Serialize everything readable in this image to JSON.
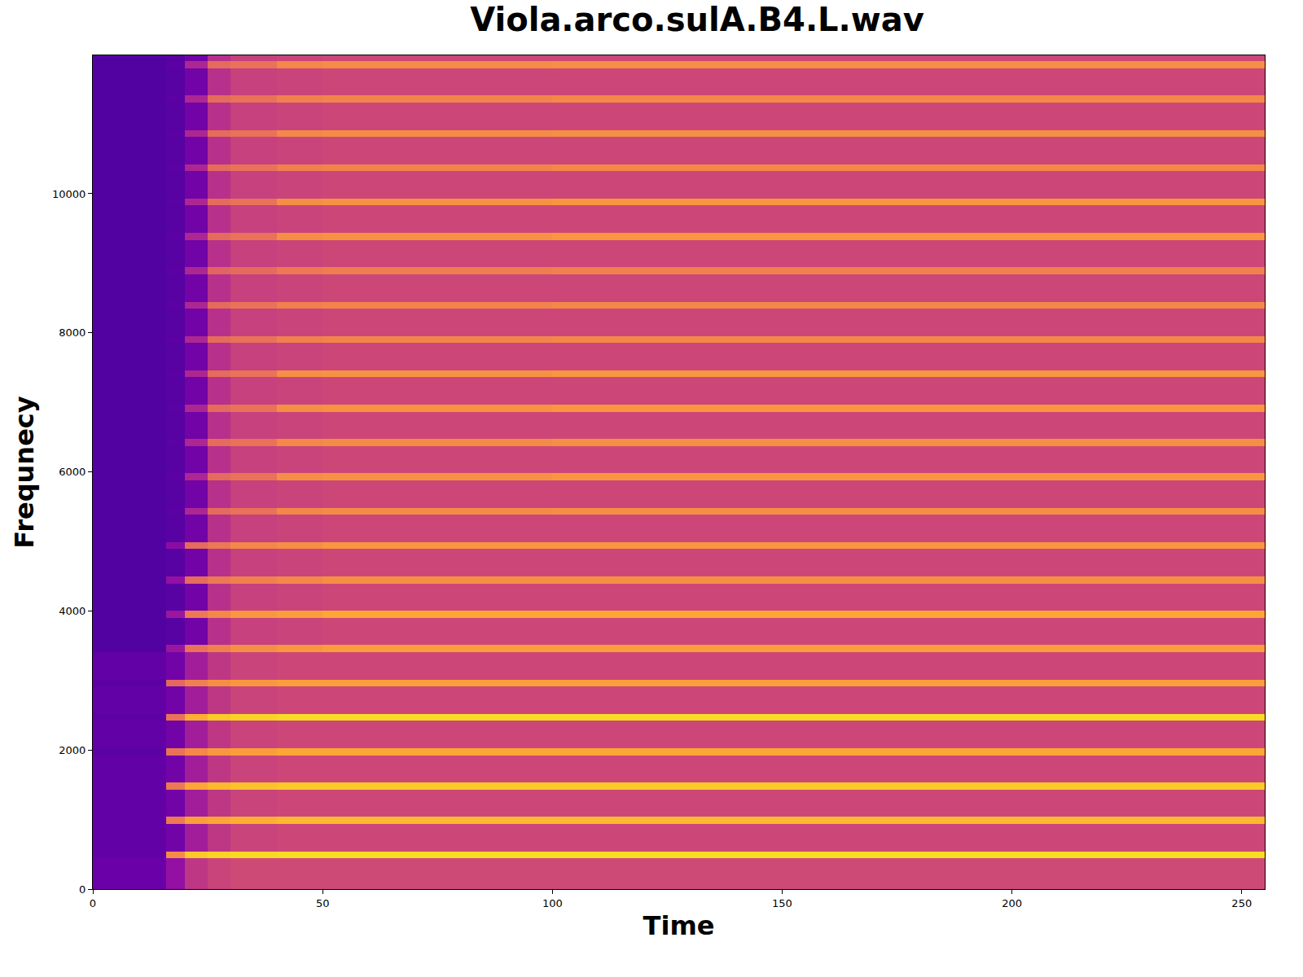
{
  "chart_data": {
    "type": "heatmap",
    "title": "Viola.arco.sulA.B4.L.wav",
    "x_label": "Time",
    "y_label": "Frequnecy",
    "x": [
      0,
      16,
      20,
      25,
      30,
      40,
      50,
      100,
      150,
      200,
      255
    ],
    "y": [
      0,
      444,
      544,
      938,
      1038,
      1432,
      1532,
      1926,
      2026,
      2420,
      2520,
      2914,
      3014,
      3408,
      3508,
      3902,
      4002,
      4396,
      4496,
      4890,
      4990,
      5384,
      5484,
      5878,
      5978,
      6372,
      6472,
      6866,
      6966,
      7360,
      7460,
      7854,
      7954,
      8348,
      8448,
      8842,
      8942,
      9336,
      9436,
      9830,
      9930,
      10324,
      10424,
      10818,
      10918,
      11312,
      11412,
      11806,
      11906,
      11990
    ],
    "z": [
      [
        -72,
        -62,
        -50,
        -46,
        -44,
        -44,
        -44,
        -44,
        -44,
        -44
      ],
      [
        -74,
        -25,
        -10,
        -8,
        -7,
        -6,
        -6,
        -6,
        -6,
        -6
      ],
      [
        -74,
        -70,
        -58,
        -50,
        -46,
        -45,
        -45,
        -45,
        -45,
        -45
      ],
      [
        -74,
        -30,
        -20,
        -18,
        -16,
        -14,
        -14,
        -14,
        -14,
        -14
      ],
      [
        -74,
        -70,
        -58,
        -50,
        -46,
        -45,
        -45,
        -45,
        -45,
        -45
      ],
      [
        -74,
        -30,
        -18,
        -14,
        -12,
        -10,
        -10,
        -10,
        -10,
        -10
      ],
      [
        -74,
        -70,
        -58,
        -50,
        -46,
        -45,
        -45,
        -45,
        -45,
        -45
      ],
      [
        -75,
        -32,
        -26,
        -22,
        -20,
        -18,
        -18,
        -18,
        -18,
        -18
      ],
      [
        -74,
        -70,
        -58,
        -50,
        -46,
        -45,
        -45,
        -45,
        -45,
        -45
      ],
      [
        -75,
        -32,
        -16,
        -10,
        -8,
        -6,
        -6,
        -6,
        -6,
        -6
      ],
      [
        -74,
        -70,
        -58,
        -50,
        -46,
        -45,
        -45,
        -45,
        -45,
        -45
      ],
      [
        -75,
        -35,
        -28,
        -24,
        -22,
        -20,
        -20,
        -20,
        -20,
        -20
      ],
      [
        -74,
        -70,
        -58,
        -50,
        -46,
        -45,
        -45,
        -45,
        -45,
        -45
      ],
      [
        -77,
        -60,
        -32,
        -28,
        -24,
        -22,
        -20,
        -20,
        -20,
        -20
      ],
      [
        -77,
        -76,
        -70,
        -52,
        -47,
        -46,
        -45,
        -45,
        -45,
        -45
      ],
      [
        -77,
        -60,
        -30,
        -26,
        -22,
        -20,
        -18,
        -18,
        -18,
        -18
      ],
      [
        -77,
        -76,
        -70,
        -52,
        -47,
        -46,
        -45,
        -45,
        -45,
        -45
      ],
      [
        -77,
        -62,
        -34,
        -30,
        -28,
        -26,
        -24,
        -24,
        -24,
        -24
      ],
      [
        -77,
        -76,
        -70,
        -52,
        -47,
        -46,
        -45,
        -45,
        -45,
        -45
      ],
      [
        -77,
        -64,
        -34,
        -30,
        -26,
        -24,
        -22,
        -22,
        -22,
        -22
      ],
      [
        -77,
        -76,
        -70,
        -52,
        -47,
        -46,
        -45,
        -45,
        -45,
        -45
      ],
      [
        -77,
        -75,
        -55,
        -34,
        -32,
        -26,
        -25,
        -24,
        -24,
        -24
      ],
      [
        -77,
        -76,
        -70,
        -52,
        -47,
        -46,
        -45,
        -45,
        -45,
        -45
      ],
      [
        -77,
        -75,
        -55,
        -34,
        -32,
        -24,
        -23,
        -22,
        -22,
        -22
      ],
      [
        -77,
        -76,
        -70,
        -52,
        -47,
        -46,
        -45,
        -45,
        -45,
        -45
      ],
      [
        -77,
        -75,
        -55,
        -34,
        -32,
        -26,
        -25,
        -24,
        -24,
        -24
      ],
      [
        -77,
        -76,
        -70,
        -52,
        -47,
        -46,
        -45,
        -45,
        -45,
        -45
      ],
      [
        -77,
        -75,
        -55,
        -34,
        -32,
        -24,
        -23,
        -22,
        -22,
        -22
      ],
      [
        -77,
        -76,
        -70,
        -52,
        -47,
        -46,
        -45,
        -45,
        -45,
        -45
      ],
      [
        -77,
        -75,
        -55,
        -34,
        -32,
        -24,
        -23,
        -22,
        -22,
        -22
      ],
      [
        -77,
        -76,
        -70,
        -52,
        -47,
        -46,
        -45,
        -45,
        -45,
        -45
      ],
      [
        -77,
        -75,
        -55,
        -34,
        -32,
        -28,
        -27,
        -26,
        -26,
        -26
      ],
      [
        -77,
        -76,
        -70,
        -52,
        -47,
        -46,
        -45,
        -45,
        -45,
        -45
      ],
      [
        -77,
        -75,
        -55,
        -34,
        -32,
        -28,
        -27,
        -26,
        -26,
        -26
      ],
      [
        -77,
        -76,
        -70,
        -52,
        -47,
        -46,
        -45,
        -45,
        -45,
        -45
      ],
      [
        -77,
        -75,
        -55,
        -36,
        -34,
        -30,
        -29,
        -28,
        -28,
        -28
      ],
      [
        -77,
        -76,
        -70,
        -52,
        -47,
        -46,
        -45,
        -45,
        -45,
        -45
      ],
      [
        -77,
        -75,
        -55,
        -34,
        -32,
        -24,
        -23,
        -22,
        -22,
        -22
      ],
      [
        -77,
        -76,
        -70,
        -52,
        -47,
        -46,
        -45,
        -45,
        -45,
        -45
      ],
      [
        -77,
        -75,
        -55,
        -34,
        -32,
        -24,
        -23,
        -22,
        -22,
        -22
      ],
      [
        -77,
        -76,
        -70,
        -52,
        -47,
        -46,
        -45,
        -45,
        -45,
        -45
      ],
      [
        -77,
        -75,
        -55,
        -34,
        -32,
        -28,
        -27,
        -26,
        -26,
        -26
      ],
      [
        -77,
        -76,
        -70,
        -52,
        -47,
        -46,
        -45,
        -45,
        -45,
        -45
      ],
      [
        -77,
        -75,
        -55,
        -34,
        -32,
        -26,
        -25,
        -24,
        -24,
        -24
      ],
      [
        -77,
        -76,
        -70,
        -52,
        -47,
        -46,
        -45,
        -45,
        -45,
        -45
      ],
      [
        -77,
        -75,
        -55,
        -34,
        -32,
        -28,
        -27,
        -26,
        -26,
        -26
      ],
      [
        -77,
        -76,
        -70,
        -52,
        -47,
        -46,
        -45,
        -45,
        -45,
        -45
      ],
      [
        -77,
        -75,
        -55,
        -34,
        -32,
        -26,
        -25,
        -24,
        -24,
        -24
      ],
      [
        -77,
        -76,
        -70,
        -52,
        -47,
        -46,
        -45,
        -45,
        -45,
        -45
      ]
    ],
    "zlim": [
      -90,
      0
    ],
    "xlim": [
      0,
      255
    ],
    "xticks": [
      0,
      50,
      100,
      150,
      200,
      250
    ],
    "ylim": [
      0,
      11990
    ],
    "yticks": [
      0,
      2000,
      4000,
      6000,
      8000,
      10000
    ],
    "grid": true
  }
}
